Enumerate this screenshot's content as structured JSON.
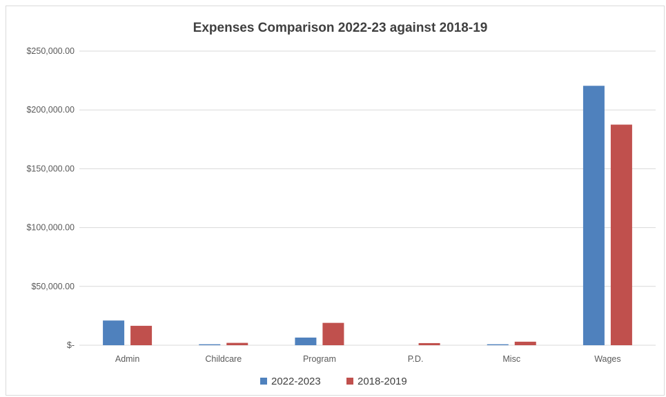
{
  "chart_data": {
    "type": "bar",
    "title": "Expenses Comparison 2022-23 against 2018-19",
    "xlabel": "",
    "ylabel": "",
    "categories": [
      "Admin",
      "Childcare",
      "Program",
      "P.D.",
      "Misc",
      "Wages"
    ],
    "series": [
      {
        "name": "2022-2023",
        "color": "#4f81bd",
        "values": [
          21000,
          800,
          6500,
          0,
          800,
          220500
        ]
      },
      {
        "name": "2018-2019",
        "color": "#c0504d",
        "values": [
          16500,
          2000,
          19000,
          1800,
          3000,
          187500
        ]
      }
    ],
    "ylim": [
      0,
      250000
    ],
    "yticks": [
      {
        "value": 0,
        "label": "$-"
      },
      {
        "value": 50000,
        "label": "$50,000.00"
      },
      {
        "value": 100000,
        "label": "$100,000.00"
      },
      {
        "value": 150000,
        "label": "$150,000.00"
      },
      {
        "value": 200000,
        "label": "$200,000.00"
      },
      {
        "value": 250000,
        "label": "$250,000.00"
      }
    ],
    "grid": true,
    "legend_position": "bottom",
    "gridline_color": "#d9d9d9"
  }
}
